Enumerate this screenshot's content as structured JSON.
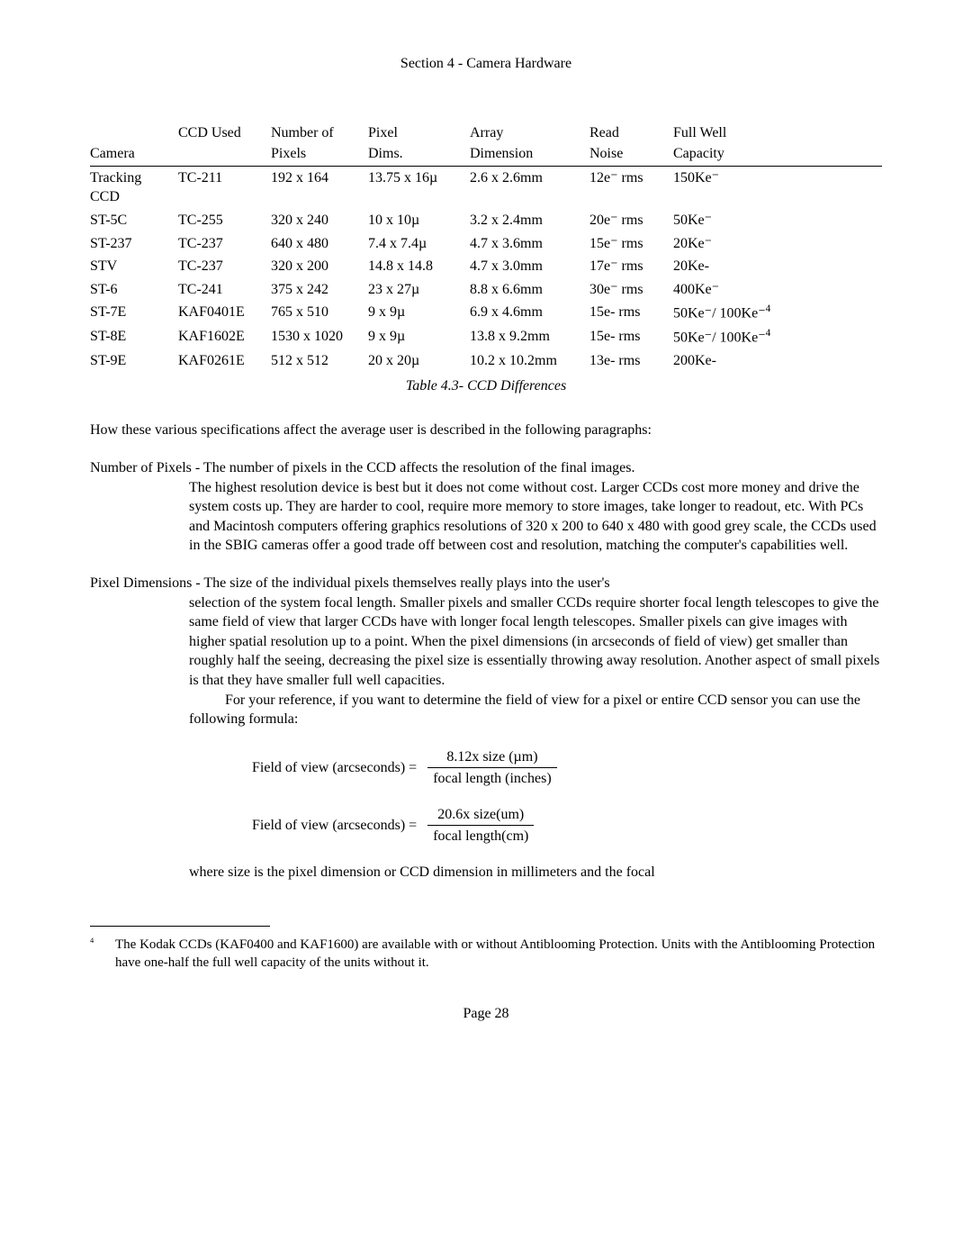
{
  "header": {
    "title": "Section 4 - Camera Hardware"
  },
  "table": {
    "columns": {
      "c1a": "",
      "c1b": "Camera",
      "c2a": "CCD Used",
      "c2b": "",
      "c3a": "Number of",
      "c3b": "Pixels",
      "c4a": "Pixel",
      "c4b": "Dims.",
      "c5a": "Array",
      "c5b": "Dimension",
      "c6a": "Read",
      "c6b": "Noise",
      "c7a": "Full Well",
      "c7b": "Capacity"
    },
    "rows": [
      {
        "camera_l1": "Tracking",
        "camera_l2": "CCD",
        "ccd": "TC-211",
        "pixels": "192 x 164",
        "pixdim": "13.75 x 16µ",
        "array": "2.6 x 2.6mm",
        "read": "12e⁻ rms",
        "full": "150Ke⁻"
      },
      {
        "camera_l1": "ST-5C",
        "camera_l2": "",
        "ccd": "TC-255",
        "pixels": "320 x 240",
        "pixdim": "10 x 10µ",
        "array": "3.2 x 2.4mm",
        "read": "20e⁻ rms",
        "full": "50Ke⁻"
      },
      {
        "camera_l1": "ST-237",
        "camera_l2": "",
        "ccd": "TC-237",
        "pixels": "640 x 480",
        "pixdim": "7.4 x 7.4µ",
        "array": "4.7 x 3.6mm",
        "read": "15e⁻ rms",
        "full": "20Ke⁻"
      },
      {
        "camera_l1": "STV",
        "camera_l2": "",
        "ccd": "TC-237",
        "pixels": "320 x 200",
        "pixdim": "14.8 x 14.8",
        "array": "4.7 x 3.0mm",
        "read": "17e⁻ rms",
        "full": "20Ke-"
      },
      {
        "camera_l1": "ST-6",
        "camera_l2": "",
        "ccd": "TC-241",
        "pixels": "375 x 242",
        "pixdim": "23 x 27µ",
        "array": "8.8 x 6.6mm",
        "read": "30e⁻ rms",
        "full": "400Ke⁻"
      },
      {
        "camera_l1": "ST-7E",
        "camera_l2": "",
        "ccd": "KAF0401E",
        "pixels": "765 x 510",
        "pixdim": "9 x 9µ",
        "array": "6.9 x 4.6mm",
        "read": "15e- rms",
        "full": "50Ke⁻/ 100Ke⁻4",
        "sup": "4"
      },
      {
        "camera_l1": "ST-8E",
        "camera_l2": "",
        "ccd": "KAF1602E",
        "pixels": "1530 x 1020",
        "pixdim": "9 x 9µ",
        "array": "13.8 x 9.2mm",
        "read": "15e- rms",
        "full": "50Ke⁻/ 100Ke⁻4",
        "sup": "4"
      },
      {
        "camera_l1": "ST-9E",
        "camera_l2": "",
        "ccd": "KAF0261E",
        "pixels": "512 x 512",
        "pixdim": "20 x 20µ",
        "array": "10.2 x 10.2mm",
        "read": "13e- rms",
        "full": "200Ke-"
      }
    ],
    "caption": "Table 4.3- CCD Differences"
  },
  "intro": "How these various specifications affect the average user is described in the following paragraphs:",
  "defs": {
    "numpix": {
      "term": "Number of Pixels",
      "sep": " - ",
      "lead": "The number of pixels in the CCD affects the resolution of the final images.",
      "body": "The highest resolution device is best but it does not come without cost.  Larger CCDs cost more money and drive the system costs up.  They are harder to cool, require more memory to store images, take longer to readout, etc.  With PCs and Macintosh computers offering graphics resolutions of 320 x 200 to 640 x 480 with good grey scale, the CCDs used in the SBIG cameras offer a good trade off between cost and resolution, matching the computer's capabilities well."
    },
    "pixdim": {
      "term": "Pixel Dimensions",
      "sep": " - ",
      "lead": "The size of the individual pixels themselves really plays into the user's",
      "body": "selection of the system focal length.  Smaller pixels and smaller CCDs require shorter focal length telescopes to give the same field of view that larger CCDs have with longer focal length telescopes.  Smaller pixels can give images with higher spatial resolution up to a point.  When the pixel dimensions (in arcseconds of field of view) get smaller than roughly half the seeing, decreasing the pixel size is essentially throwing away resolution.  Another aspect of small pixels is that they have smaller full well capacities.",
      "cont": "For your reference, if you want to determine the field of view for a pixel or entire CCD sensor you can use the following formula:"
    }
  },
  "formulas": {
    "f1": {
      "lhs": "Field of view (arcseconds) = ",
      "num": "8.12x size (µm)",
      "den": "focal length (inches)"
    },
    "f2": {
      "lhs": "Field of view (arcseconds) = ",
      "num": "20.6x size(um)",
      "den": "focal length(cm)"
    }
  },
  "closing": "where size is the pixel dimension or CCD dimension in millimeters and the focal",
  "footnote": {
    "num": "4",
    "text": "The Kodak CCDs (KAF0400 and KAF1600) are available with or without Antiblooming Protection.  Units with the Antiblooming Protection have one-half the full well capacity of the units without it."
  },
  "page": "Page 28"
}
